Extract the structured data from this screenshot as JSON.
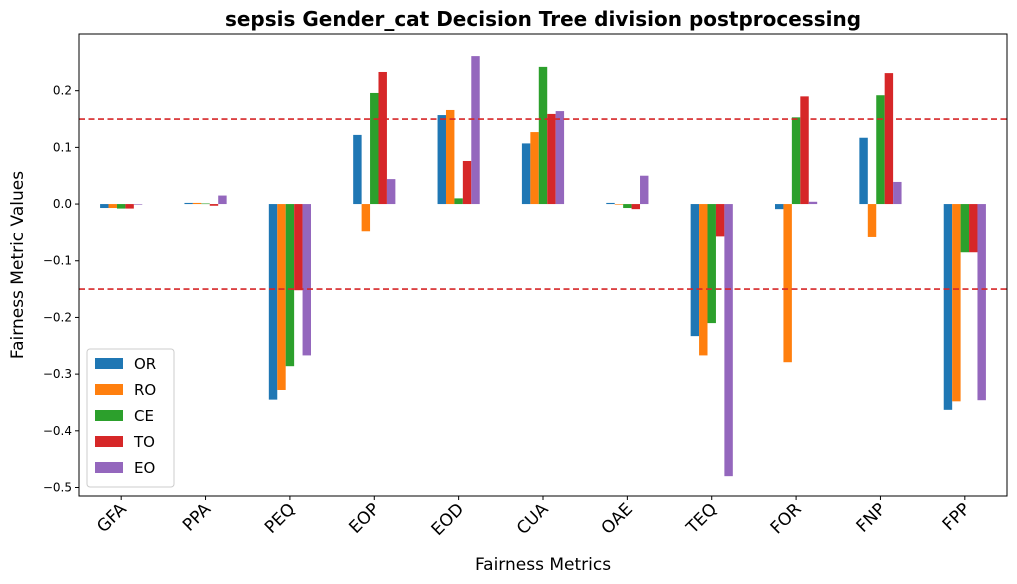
{
  "chart_data": {
    "type": "bar",
    "title": "sepsis Gender_cat Decision Tree division postprocessing",
    "xlabel": "Fairness Metrics",
    "ylabel": "Fairness Metric Values",
    "categories": [
      "GFA",
      "PPA",
      "PEQ",
      "EOP",
      "EOD",
      "CUA",
      "OAE",
      "TEQ",
      "FOR",
      "FNP",
      "FPP"
    ],
    "ylim": [
      -0.515,
      0.3
    ],
    "yticks": [
      "−0.5",
      "−0.4",
      "−0.3",
      "−0.2",
      "−0.1",
      "0.0",
      "0.1",
      "0.2"
    ],
    "ytick_values": [
      -0.5,
      -0.4,
      -0.3,
      -0.2,
      -0.1,
      0.0,
      0.1,
      0.2
    ],
    "thresholds": [
      0.15,
      -0.15
    ],
    "threshold_color": "#d62728",
    "legend_position": "lower-left",
    "grid": false,
    "series": [
      {
        "name": "OR",
        "color": "#1f77b4",
        "values": [
          -0.007,
          0.002,
          -0.345,
          0.122,
          0.157,
          0.107,
          0.002,
          -0.233,
          -0.009,
          0.117,
          -0.363
        ]
      },
      {
        "name": "RO",
        "color": "#ff7f0e",
        "values": [
          -0.007,
          0.002,
          -0.328,
          -0.048,
          0.166,
          0.127,
          0.0,
          -0.267,
          -0.279,
          -0.058,
          -0.348
        ]
      },
      {
        "name": "CE",
        "color": "#2ca02c",
        "values": [
          -0.008,
          0.001,
          -0.286,
          0.196,
          0.01,
          0.242,
          -0.007,
          -0.21,
          0.153,
          0.192,
          -0.085
        ]
      },
      {
        "name": "TO",
        "color": "#d62728",
        "values": [
          -0.008,
          -0.003,
          -0.152,
          0.233,
          0.076,
          0.159,
          -0.009,
          -0.057,
          0.19,
          0.231,
          -0.085
        ]
      },
      {
        "name": "EO",
        "color": "#9467bd",
        "values": [
          -0.001,
          0.015,
          -0.267,
          0.044,
          0.261,
          0.164,
          0.05,
          -0.48,
          0.004,
          0.039,
          -0.346
        ]
      }
    ]
  }
}
